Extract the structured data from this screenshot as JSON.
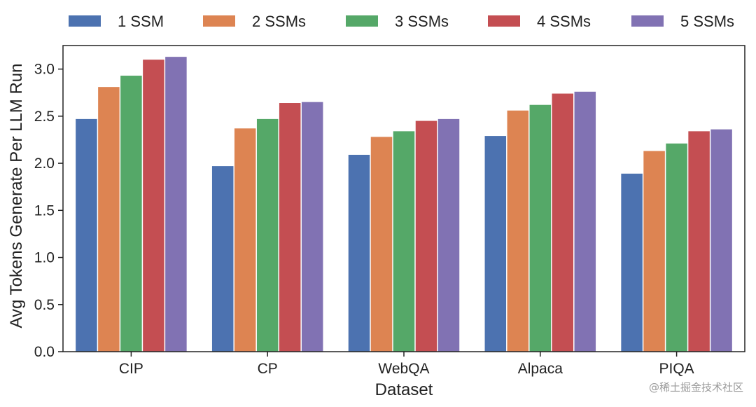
{
  "chart_data": {
    "type": "bar",
    "title": "",
    "xlabel": "Dataset",
    "ylabel": "Avg Tokens Generate Per LLM Run",
    "ylim": [
      0,
      3.25
    ],
    "yticks": [
      "0.0",
      "0.5",
      "1.0",
      "1.5",
      "2.0",
      "2.5",
      "3.0"
    ],
    "grid": false,
    "legend_position": "top",
    "categories": [
      "CIP",
      "CP",
      "WebQA",
      "Alpaca",
      "PIQA"
    ],
    "series": [
      {
        "name": "1 SSM",
        "color": "#4c72b0",
        "values": [
          2.47,
          1.97,
          2.09,
          2.29,
          1.89
        ]
      },
      {
        "name": "2 SSMs",
        "color": "#dd8452",
        "values": [
          2.81,
          2.37,
          2.28,
          2.56,
          2.13
        ]
      },
      {
        "name": "3 SSMs",
        "color": "#55a868",
        "values": [
          2.93,
          2.47,
          2.34,
          2.62,
          2.21
        ]
      },
      {
        "name": "4 SSMs",
        "color": "#c44e52",
        "values": [
          3.1,
          2.64,
          2.45,
          2.74,
          2.34
        ]
      },
      {
        "name": "5 SSMs",
        "color": "#8172b3",
        "values": [
          3.13,
          2.65,
          2.47,
          2.76,
          2.36
        ]
      }
    ]
  },
  "watermark": "@稀土掘金技术社区"
}
